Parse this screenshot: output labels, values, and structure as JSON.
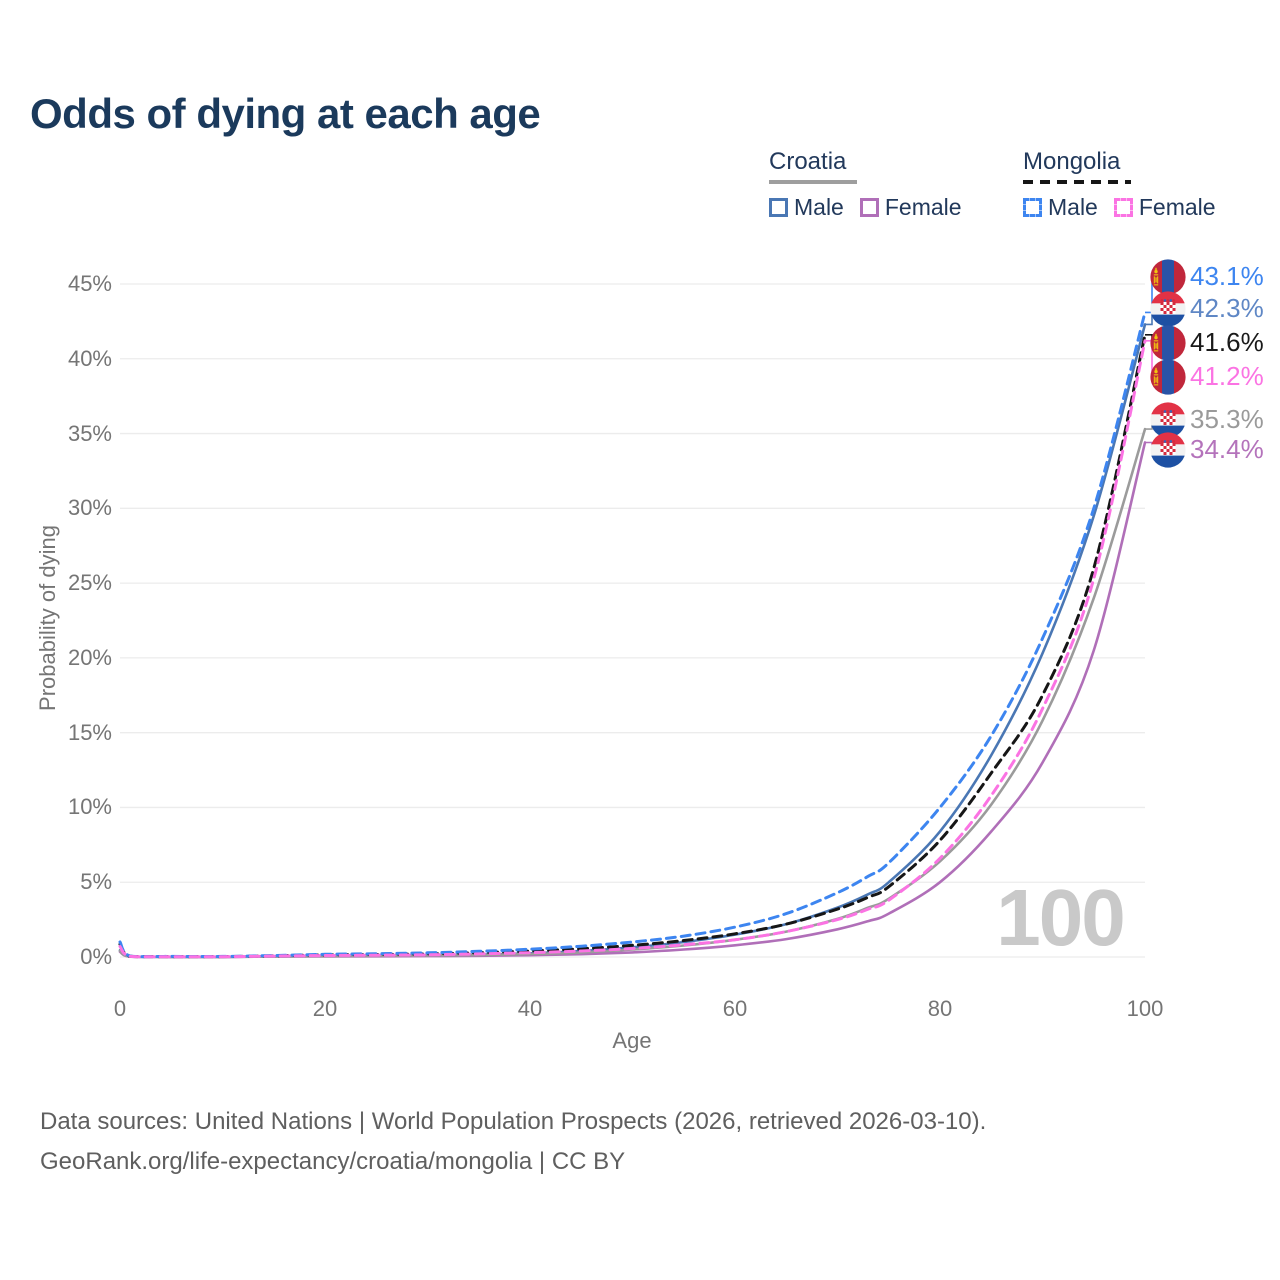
{
  "title": "Odds of dying at each age",
  "watermark": "100",
  "legend": {
    "groups": [
      {
        "label": "Croatia",
        "line_style": "solid",
        "line_color": "#9e9e9e",
        "items": [
          {
            "label": "Male",
            "swatch_color": "#4a77b4",
            "dashed": false
          },
          {
            "label": "Female",
            "swatch_color": "#b06fb8",
            "dashed": false
          }
        ]
      },
      {
        "label": "Mongolia",
        "line_style": "dashed",
        "line_color": "#161616",
        "items": [
          {
            "label": "Male",
            "swatch_color": "#3d85f0",
            "dashed": true
          },
          {
            "label": "Female",
            "swatch_color": "#fb73e3",
            "dashed": true
          }
        ]
      }
    ]
  },
  "chart_data": {
    "type": "line",
    "title": "Odds of dying at each age",
    "xlabel": "Age",
    "ylabel": "Probability of dying",
    "xlim": [
      0,
      100
    ],
    "ylim_percent": [
      0,
      45
    ],
    "x_ticks": [
      0,
      20,
      40,
      60,
      80,
      100
    ],
    "y_ticks_percent": [
      0,
      5,
      10,
      15,
      20,
      25,
      30,
      35,
      40,
      45
    ],
    "grid": "horizontal-only",
    "legend_position": "top-right",
    "ages": [
      0,
      1,
      5,
      10,
      15,
      20,
      25,
      30,
      35,
      40,
      45,
      50,
      55,
      60,
      65,
      70,
      73,
      75,
      80,
      85,
      90,
      95,
      100
    ],
    "series": [
      {
        "name": "Croatia Male",
        "country": "croatia",
        "sex": "male",
        "color": "#4a77b4",
        "dashed": false,
        "label_color": "#5f87c5",
        "end_label": "42.3%",
        "values_percent": [
          0.45,
          0.03,
          0.01,
          0.01,
          0.04,
          0.08,
          0.1,
          0.12,
          0.16,
          0.25,
          0.4,
          0.65,
          1.0,
          1.5,
          2.2,
          3.3,
          4.2,
          5.0,
          8.4,
          13.5,
          20.3,
          29.5,
          42.3
        ]
      },
      {
        "name": "Croatia Female",
        "country": "croatia",
        "sex": "female",
        "color": "#b06fb8",
        "dashed": false,
        "label_color": "#b473bb",
        "end_label": "34.4%",
        "values_percent": [
          0.35,
          0.02,
          0.01,
          0.01,
          0.025,
          0.04,
          0.05,
          0.06,
          0.08,
          0.12,
          0.19,
          0.31,
          0.5,
          0.78,
          1.2,
          1.85,
          2.4,
          2.9,
          5.0,
          8.4,
          13.0,
          20.5,
          34.4
        ]
      },
      {
        "name": "Croatia (both sexes)",
        "country": "croatia",
        "sex": "all",
        "color": "#9b9b9b",
        "dashed": false,
        "label_color": "#9a9a9a",
        "end_label": "35.3%",
        "values_percent": [
          0.4,
          0.025,
          0.01,
          0.01,
          0.03,
          0.06,
          0.08,
          0.1,
          0.13,
          0.2,
          0.31,
          0.5,
          0.77,
          1.15,
          1.7,
          2.55,
          3.3,
          3.9,
          6.4,
          10.2,
          15.8,
          24.0,
          35.3
        ]
      },
      {
        "name": "Mongolia (both sexes)",
        "country": "mongolia",
        "sex": "all",
        "color": "#161616",
        "dashed": true,
        "label_color": "#1a1a1a",
        "end_label": "41.6%",
        "values_percent": [
          0.85,
          0.05,
          0.03,
          0.03,
          0.08,
          0.14,
          0.17,
          0.21,
          0.29,
          0.4,
          0.55,
          0.78,
          1.1,
          1.55,
          2.2,
          3.2,
          4.0,
          4.7,
          7.8,
          12.3,
          17.5,
          26.0,
          41.6
        ]
      },
      {
        "name": "Mongolia Male",
        "country": "mongolia",
        "sex": "male",
        "color": "#3d85f0",
        "dashed": true,
        "label_color": "#3d85f0",
        "end_label": "43.1%",
        "values_percent": [
          1.0,
          0.06,
          0.04,
          0.04,
          0.1,
          0.18,
          0.22,
          0.28,
          0.38,
          0.52,
          0.72,
          1.0,
          1.4,
          2.0,
          2.9,
          4.3,
          5.4,
          6.3,
          10.0,
          14.8,
          21.3,
          30.0,
          43.1
        ]
      },
      {
        "name": "Mongolia Female",
        "country": "mongolia",
        "sex": "female",
        "color": "#fb73e3",
        "dashed": true,
        "label_color": "#fb73e3",
        "end_label": "41.2%",
        "values_percent": [
          0.7,
          0.04,
          0.02,
          0.02,
          0.06,
          0.1,
          0.12,
          0.15,
          0.21,
          0.29,
          0.4,
          0.57,
          0.82,
          1.15,
          1.7,
          2.5,
          3.2,
          3.8,
          6.6,
          10.8,
          16.6,
          25.3,
          41.2
        ]
      }
    ],
    "end_labels_top_to_bottom": [
      "43.1%",
      "42.3%",
      "41.6%",
      "41.2%",
      "35.3%",
      "34.4%"
    ]
  },
  "footer": {
    "line1": "Data sources: United Nations | World Population Prospects (2026, retrieved 2026-03-10).",
    "line2": "GeoRank.org/life-expectancy/croatia/mongolia | CC BY"
  }
}
